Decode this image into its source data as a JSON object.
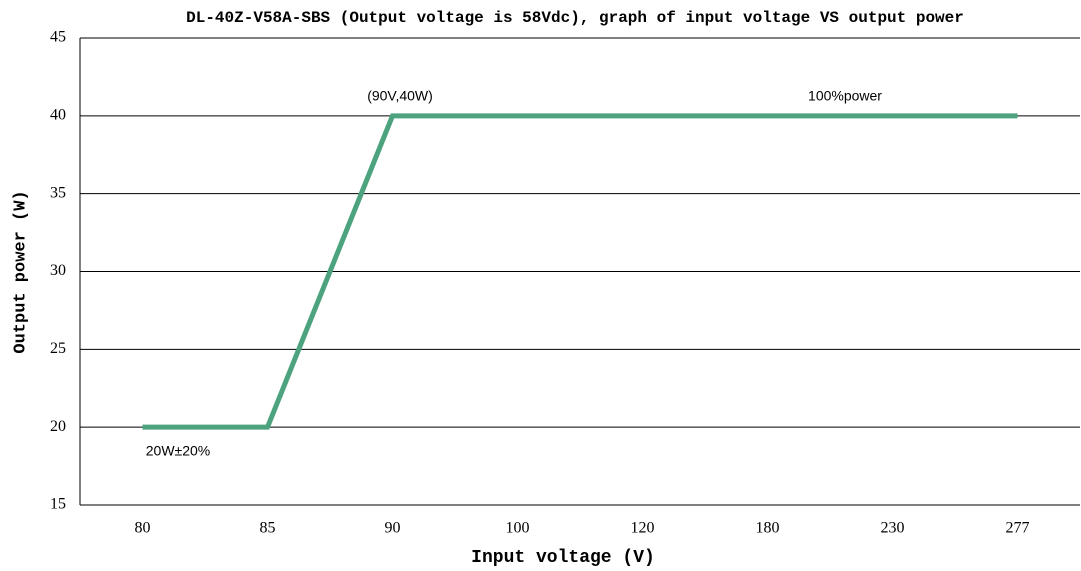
{
  "chart_data": {
    "type": "line",
    "title": "DL-40Z-V58A-SBS (Output voltage is 58Vdc), graph of input voltage VS output power",
    "x_label": "Input voltage (V)",
    "y_label": "Output power (W)",
    "categories": [
      80,
      85,
      90,
      100,
      120,
      180,
      230,
      277
    ],
    "series": [
      {
        "name": "Output power",
        "color": "#4ca37d",
        "values": [
          20,
          20,
          40,
          40,
          40,
          40,
          40,
          40
        ]
      }
    ],
    "ylim": [
      15,
      45
    ],
    "yticks": [
      15,
      20,
      25,
      30,
      35,
      40,
      45
    ],
    "grid": true,
    "annotations": [
      "(90V,40W)",
      "100%power",
      "20W±20%"
    ]
  }
}
